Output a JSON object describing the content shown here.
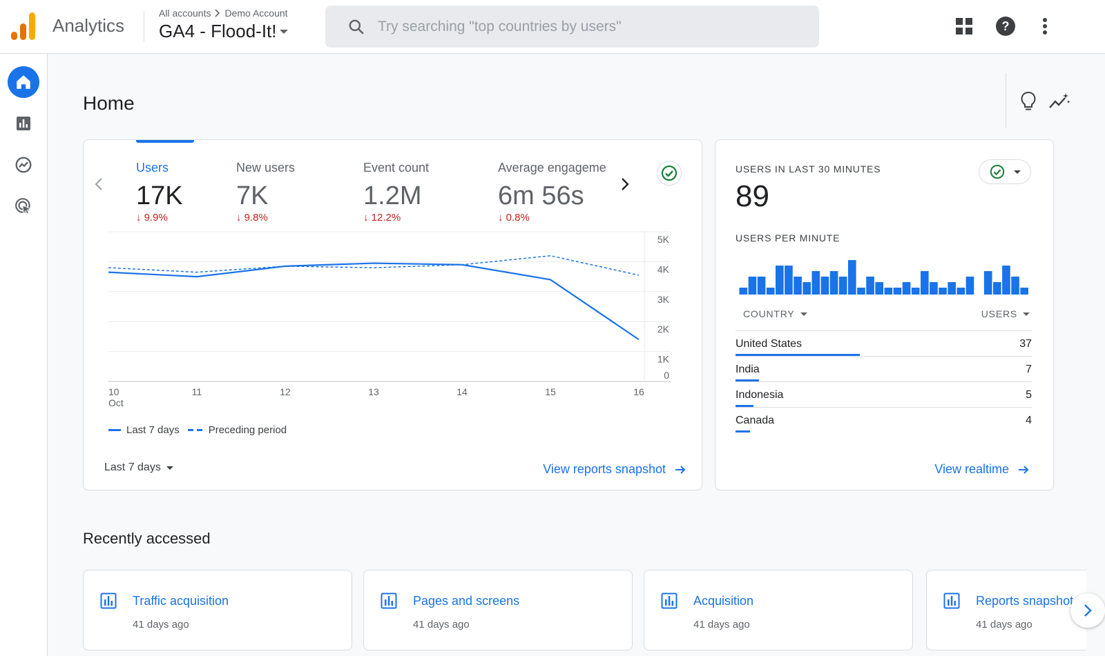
{
  "app": {
    "brand": "Analytics",
    "breadcrumb": [
      "All accounts",
      "Demo Account"
    ],
    "property": "GA4 - Flood-It!",
    "search_placeholder": "Try searching \"top countries by users\""
  },
  "page": {
    "title": "Home"
  },
  "icons": {
    "apps": "apps-grid-icon",
    "help": "help-icon",
    "more": "more-vert-icon",
    "insights": "lightbulb-icon",
    "trend": "insights-trend-icon"
  },
  "colors": {
    "accent": "#1a73e8",
    "negative": "#c5221f",
    "positive": "#188038"
  },
  "metrics": [
    {
      "label": "Users",
      "value": "17K",
      "change": "9.9%",
      "direction": "down",
      "active": true
    },
    {
      "label": "New users",
      "value": "7K",
      "change": "9.8%",
      "direction": "down"
    },
    {
      "label": "Event count",
      "value": "1.2M",
      "change": "12.2%",
      "direction": "down"
    },
    {
      "label": "Average engageme",
      "value": "6m 56s",
      "change": "0.8%",
      "direction": "down"
    }
  ],
  "chart_data": {
    "type": "line",
    "x": [
      "10",
      "11",
      "12",
      "13",
      "14",
      "15",
      "16"
    ],
    "x_sublabel": "Oct",
    "y_ticks": [
      "5K",
      "4K",
      "3K",
      "2K",
      "1K",
      "0"
    ],
    "ylim": [
      0,
      5000
    ],
    "series": [
      {
        "name": "Last 7 days",
        "style": "solid",
        "values": [
          3650,
          3500,
          3850,
          3950,
          3900,
          3400,
          1400
        ]
      },
      {
        "name": "Preceding period",
        "style": "dashed",
        "values": [
          3800,
          3650,
          3850,
          3800,
          3900,
          4200,
          3550
        ]
      }
    ],
    "legend": [
      "Last 7 days",
      "Preceding period"
    ],
    "grid": true
  },
  "main_card": {
    "range_label": "Last 7 days",
    "link_label": "View reports snapshot"
  },
  "realtime": {
    "title": "USERS IN LAST 30 MINUTES",
    "value": "89",
    "per_minute_label": "USERS PER MINUTE",
    "per_minute": [
      1,
      3,
      3,
      1,
      5,
      5,
      3,
      2,
      4,
      3,
      4,
      3,
      6,
      1,
      3,
      2,
      1,
      1,
      2,
      1,
      4,
      2,
      1,
      2,
      1,
      3,
      0,
      4,
      2,
      5,
      3,
      1
    ],
    "col_country": "COUNTRY",
    "col_users": "USERS",
    "rows": [
      {
        "country": "United States",
        "users": "37",
        "share": 0.42
      },
      {
        "country": "India",
        "users": "7",
        "share": 0.08
      },
      {
        "country": "Indonesia",
        "users": "5",
        "share": 0.06
      },
      {
        "country": "Canada",
        "users": "4",
        "share": 0.05
      }
    ],
    "link_label": "View realtime"
  },
  "recent": {
    "title": "Recently accessed",
    "items": [
      {
        "title": "Traffic acquisition",
        "sub": "41 days ago"
      },
      {
        "title": "Pages and screens",
        "sub": "41 days ago"
      },
      {
        "title": "Acquisition",
        "sub": "41 days ago"
      },
      {
        "title": "Reports snapshot",
        "sub": "41 days ago"
      }
    ]
  }
}
